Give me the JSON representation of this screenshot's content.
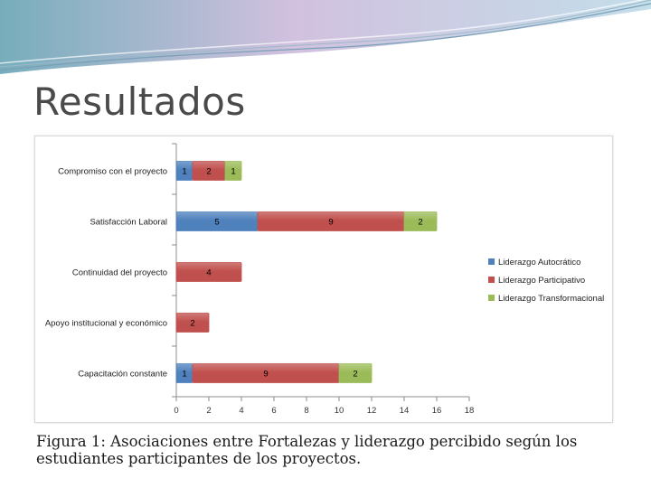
{
  "slide": {
    "title": "Resultados",
    "caption": "Figura 1: Asociaciones entre Fortalezas y liderazgo percibido según los estudiantes participantes de los proyectos."
  },
  "chart_data": {
    "type": "bar",
    "orientation": "horizontal",
    "stacked": true,
    "categories": [
      "Compromiso con el proyecto",
      "Satisfacción Laboral",
      "Continuidad del proyecto",
      "Apoyo institucional y económico",
      "Capacitación constante"
    ],
    "series": [
      {
        "name": "Liderazgo Autocrático",
        "color": "#4f81bd",
        "values": [
          1,
          5,
          0,
          0,
          1
        ]
      },
      {
        "name": "Liderazgo Participativo",
        "color": "#c0504d",
        "values": [
          2,
          9,
          4,
          2,
          9
        ]
      },
      {
        "name": "Liderazgo Transformacional",
        "color": "#9bbb59",
        "values": [
          1,
          2,
          0,
          0,
          2
        ]
      }
    ],
    "xlim": [
      0,
      18
    ],
    "xticks": [
      0,
      2,
      4,
      6,
      8,
      10,
      12,
      14,
      16,
      18
    ],
    "legend_position": "right",
    "grid": false
  }
}
